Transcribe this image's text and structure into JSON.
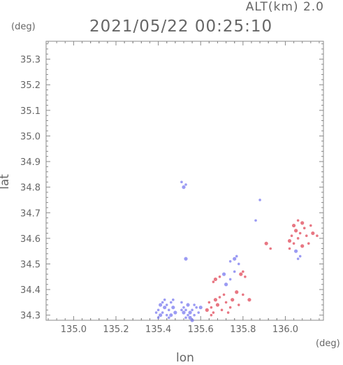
{
  "header": {
    "altitude_label": "ALT(km) 2.0",
    "timestamp": "2021/05/22 00:25:10"
  },
  "chart_data": {
    "type": "scatter",
    "title": "2021/05/22 00:25:10",
    "xlabel": "lon",
    "ylabel": "lat",
    "xunit": "(deg)",
    "yunit": "(deg)",
    "xlim": [
      134.87,
      136.18
    ],
    "ylim": [
      34.28,
      35.37
    ],
    "xticks": [
      "135.0",
      "135.2",
      "135.4",
      "135.6",
      "135.8",
      "136.0"
    ],
    "yticks": [
      "34.3",
      "34.4",
      "34.5",
      "34.6",
      "34.7",
      "34.8",
      "34.9",
      "35.0",
      "35.1",
      "35.2",
      "35.3"
    ],
    "grid": false,
    "colors": {
      "approaching": "#7a7aef",
      "receding": "#e04a5a",
      "axis": "#888888"
    },
    "series": [
      {
        "color": "approaching",
        "points": [
          [
            135.41,
            34.3
          ],
          [
            135.42,
            34.31
          ],
          [
            135.4,
            34.32
          ],
          [
            135.43,
            34.33
          ],
          [
            135.44,
            34.3
          ],
          [
            135.45,
            34.32
          ],
          [
            135.41,
            34.34
          ],
          [
            135.46,
            34.35
          ],
          [
            135.43,
            34.36
          ],
          [
            135.47,
            34.33
          ],
          [
            135.42,
            34.35
          ],
          [
            135.44,
            34.34
          ],
          [
            135.48,
            34.31
          ],
          [
            135.45,
            34.29
          ],
          [
            135.4,
            34.29
          ],
          [
            135.46,
            34.3
          ],
          [
            135.39,
            34.31
          ],
          [
            135.47,
            34.36
          ],
          [
            135.52,
            34.31
          ],
          [
            135.53,
            34.32
          ],
          [
            135.54,
            34.3
          ],
          [
            135.55,
            34.31
          ],
          [
            135.56,
            34.32
          ],
          [
            135.53,
            34.29
          ],
          [
            135.55,
            34.29
          ],
          [
            135.57,
            34.3
          ],
          [
            135.52,
            34.33
          ],
          [
            135.54,
            34.34
          ],
          [
            135.51,
            34.35
          ],
          [
            135.58,
            34.33
          ],
          [
            135.56,
            34.28
          ],
          [
            135.59,
            34.31
          ],
          [
            135.51,
            34.32
          ],
          [
            135.6,
            34.33
          ],
          [
            135.57,
            34.34
          ],
          [
            135.74,
            34.51
          ],
          [
            135.76,
            34.52
          ],
          [
            135.78,
            34.5
          ],
          [
            135.77,
            34.53
          ],
          [
            135.71,
            34.46
          ],
          [
            135.74,
            34.44
          ],
          [
            135.76,
            34.47
          ],
          [
            135.72,
            34.42
          ],
          [
            135.51,
            34.82
          ],
          [
            135.53,
            34.81
          ],
          [
            135.52,
            34.8
          ],
          [
            136.06,
            34.52
          ],
          [
            136.07,
            34.53
          ],
          [
            136.05,
            34.55
          ],
          [
            135.86,
            34.67
          ],
          [
            135.88,
            34.75
          ],
          [
            135.53,
            34.52
          ]
        ]
      },
      {
        "color": "receding",
        "points": [
          [
            135.63,
            34.32
          ],
          [
            135.65,
            34.33
          ],
          [
            135.66,
            34.31
          ],
          [
            135.68,
            34.34
          ],
          [
            135.7,
            34.32
          ],
          [
            135.72,
            34.35
          ],
          [
            135.67,
            34.36
          ],
          [
            135.69,
            34.37
          ],
          [
            135.74,
            34.33
          ],
          [
            135.75,
            34.36
          ],
          [
            135.78,
            34.34
          ],
          [
            135.8,
            34.38
          ],
          [
            135.83,
            34.36
          ],
          [
            135.65,
            34.3
          ],
          [
            135.71,
            34.38
          ],
          [
            135.77,
            34.39
          ],
          [
            135.64,
            34.35
          ],
          [
            135.73,
            34.31
          ],
          [
            135.67,
            34.44
          ],
          [
            135.69,
            34.45
          ],
          [
            135.66,
            34.43
          ],
          [
            135.79,
            34.46
          ],
          [
            135.81,
            34.45
          ],
          [
            135.8,
            34.47
          ],
          [
            136.02,
            34.59
          ],
          [
            136.03,
            34.61
          ],
          [
            136.04,
            34.58
          ],
          [
            136.05,
            34.63
          ],
          [
            136.06,
            34.6
          ],
          [
            136.07,
            34.62
          ],
          [
            136.08,
            34.57
          ],
          [
            136.09,
            34.64
          ],
          [
            136.1,
            34.61
          ],
          [
            136.04,
            34.65
          ],
          [
            136.11,
            34.58
          ],
          [
            136.02,
            34.56
          ],
          [
            136.13,
            34.62
          ],
          [
            136.15,
            34.61
          ],
          [
            136.06,
            34.67
          ],
          [
            136.08,
            34.66
          ],
          [
            136.12,
            34.65
          ],
          [
            135.93,
            34.56
          ],
          [
            135.91,
            34.58
          ]
        ]
      }
    ]
  }
}
